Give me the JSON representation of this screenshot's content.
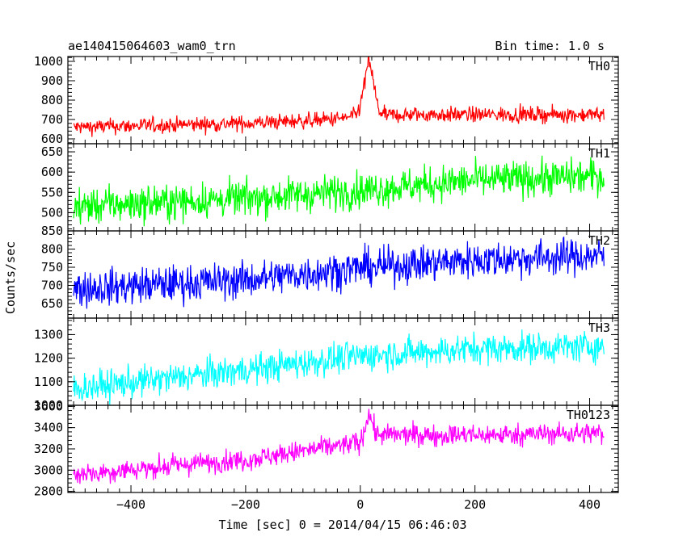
{
  "header": {
    "title": "ae140415064603_wam0_trn",
    "bin_time": "Bin time: 1.0 s"
  },
  "axes": {
    "ylabel": "Counts/sec",
    "xlabel": "Time [sec] 0 = 2014/04/15 06:46:03"
  },
  "chart_data": {
    "type": "line",
    "title": "ae140415064603_wam0_trn",
    "xlabel": "Time [sec] 0 = 2014/04/15 06:46:03",
    "ylabel": "Counts/sec",
    "xlim": [
      -510,
      450
    ],
    "x_range_data": [
      -500,
      425
    ],
    "bin_time_s": 1.0,
    "x_ticks": [
      -400,
      -200,
      0,
      200,
      400
    ],
    "grid": false,
    "panels": [
      {
        "name": "TH0",
        "color": "#ff0000",
        "ylim": [
          575,
          1025
        ],
        "y_ticks": [
          600,
          700,
          800,
          900,
          1000
        ],
        "trend": [
          [
            -500,
            660
          ],
          [
            -200,
            680
          ],
          [
            -50,
            700
          ],
          [
            0,
            720
          ],
          [
            100,
            725
          ],
          [
            425,
            725
          ]
        ],
        "noise_amp": 38,
        "peak": {
          "x": 15,
          "y": 1020,
          "width": 12
        }
      },
      {
        "name": "TH1",
        "color": "#00ff00",
        "ylim": [
          455,
          670
        ],
        "y_ticks": [
          500,
          550,
          600,
          650
        ],
        "trend": [
          [
            -500,
            515
          ],
          [
            -200,
            535
          ],
          [
            0,
            555
          ],
          [
            200,
            580
          ],
          [
            425,
            590
          ]
        ],
        "noise_amp": 42
      },
      {
        "name": "TH2",
        "color": "#0000ff",
        "ylim": [
          610,
          850
        ],
        "y_ticks": [
          650,
          700,
          750,
          800,
          850
        ],
        "trend": [
          [
            -500,
            690
          ],
          [
            -200,
            715
          ],
          [
            0,
            748
          ],
          [
            200,
            770
          ],
          [
            425,
            782
          ]
        ],
        "noise_amp": 48
      },
      {
        "name": "TH3",
        "color": "#00ffff",
        "ylim": [
          1000,
          1370
        ],
        "y_ticks": [
          1000,
          1100,
          1200,
          1300
        ],
        "trend": [
          [
            -500,
            1070
          ],
          [
            -200,
            1150
          ],
          [
            0,
            1210
          ],
          [
            200,
            1240
          ],
          [
            425,
            1250
          ]
        ],
        "noise_amp": 62
      },
      {
        "name": "TH0123",
        "color": "#ff00ff",
        "ylim": [
          2790,
          3610
        ],
        "y_ticks": [
          2800,
          3000,
          3200,
          3400,
          3600
        ],
        "trend": [
          [
            -500,
            2960
          ],
          [
            -200,
            3100
          ],
          [
            0,
            3260
          ],
          [
            20,
            3330
          ],
          [
            200,
            3330
          ],
          [
            425,
            3350
          ]
        ],
        "noise_amp": 95,
        "peak": {
          "x": 15,
          "y": 3560,
          "width": 8
        }
      }
    ]
  }
}
